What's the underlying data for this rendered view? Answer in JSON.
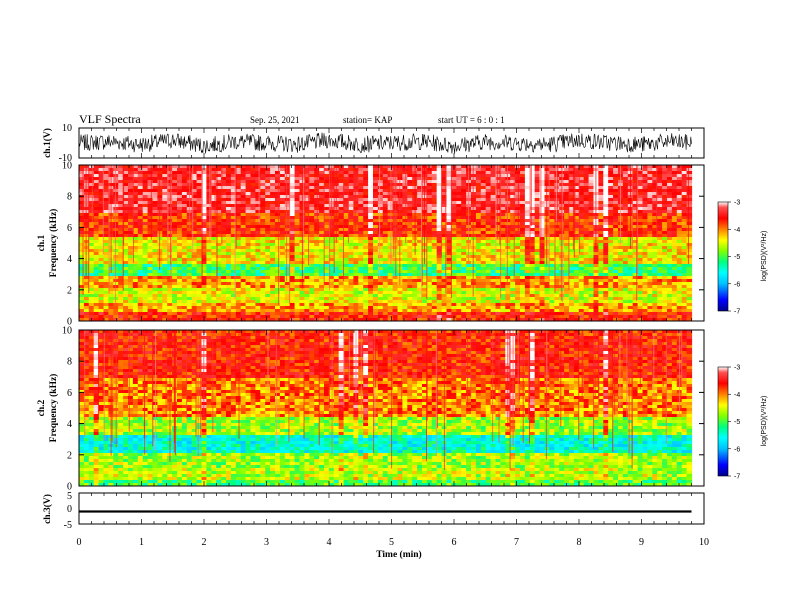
{
  "header": {
    "title": "VLF Spectra",
    "date": "Sep. 25, 2021",
    "station": "station= KAP",
    "start_ut": "start UT =  6 : 0 : 1"
  },
  "colors": {
    "colormap": [
      "#00008b",
      "#0000ff",
      "#00c0ff",
      "#00ffff",
      "#00ff80",
      "#80ff00",
      "#ffff00",
      "#ff8000",
      "#ff0000",
      "#ff3030",
      "#ffffff"
    ],
    "waveform": "#000000"
  },
  "chart_data": [
    {
      "type": "line",
      "panel": "ch.1 waveform",
      "ylabel": "ch.1(V)",
      "ylim": [
        -10,
        10
      ],
      "y_ticks": [
        "10",
        "-10"
      ],
      "x": [
        0,
        0.5,
        1,
        1.5,
        2,
        2.5,
        3,
        3.5,
        4,
        4.5,
        5,
        5.5,
        6,
        6.5,
        7,
        7.5,
        8,
        8.5,
        9,
        9.5,
        9.8
      ],
      "values": [
        0,
        1,
        -1,
        2,
        -2,
        1,
        0,
        -1,
        2,
        -1,
        0,
        1,
        -2,
        1,
        0,
        -1,
        2,
        0,
        -1,
        1,
        0
      ],
      "amplitude_range": [
        -7,
        7
      ]
    },
    {
      "type": "heatmap",
      "panel": "ch.1 spectrogram",
      "ylabel": "ch.1\nFrequency (kHz)",
      "ylim": [
        0,
        10
      ],
      "y_ticks": [
        "10",
        "8",
        "6",
        "4",
        "2",
        "0"
      ],
      "colorbar": {
        "label": "log(PSD)(V²/Hz)",
        "range": [
          -7,
          -3
        ],
        "ticks": [
          "-3",
          "-4",
          "-5",
          "-6",
          "-7"
        ]
      },
      "band_levels": [
        {
          "f_range": [
            0,
            0.5
          ],
          "log_psd": -3.8
        },
        {
          "f_range": [
            0.5,
            1.2
          ],
          "log_psd": -4.3
        },
        {
          "f_range": [
            1.2,
            2.2
          ],
          "log_psd": -4.7
        },
        {
          "f_range": [
            2.2,
            2.8
          ],
          "log_psd": -4.3
        },
        {
          "f_range": [
            2.8,
            3.6
          ],
          "log_psd": -5.3
        },
        {
          "f_range": [
            3.6,
            4.0
          ],
          "log_psd": -4.6
        },
        {
          "f_range": [
            4.0,
            5.3
          ],
          "log_psd": -4.6
        },
        {
          "f_range": [
            5.3,
            7.0
          ],
          "log_psd": -3.9
        },
        {
          "f_range": [
            7.0,
            10.0
          ],
          "log_psd": -3.5
        }
      ]
    },
    {
      "type": "heatmap",
      "panel": "ch.2 spectrogram",
      "ylabel": "ch.2\nFrequency (kHz)",
      "ylim": [
        0,
        10
      ],
      "y_ticks": [
        "10",
        "8",
        "6",
        "4",
        "2",
        "0"
      ],
      "colorbar": {
        "label": "log(PSD)(V²/Hz)",
        "range": [
          -7,
          -3
        ],
        "ticks": [
          "-3",
          "-4",
          "-5",
          "-6",
          "-7"
        ]
      },
      "band_levels": [
        {
          "f_range": [
            0,
            0.3
          ],
          "log_psd": -5.2
        },
        {
          "f_range": [
            0.3,
            1.2
          ],
          "log_psd": -4.8
        },
        {
          "f_range": [
            1.2,
            2.2
          ],
          "log_psd": -4.9
        },
        {
          "f_range": [
            2.2,
            3.3
          ],
          "log_psd": -5.7
        },
        {
          "f_range": [
            3.3,
            4.5
          ],
          "log_psd": -4.9
        },
        {
          "f_range": [
            4.5,
            7.0
          ],
          "log_psd": -4.2
        },
        {
          "f_range": [
            7.0,
            10.0
          ],
          "log_psd": -3.8
        }
      ]
    },
    {
      "type": "line",
      "panel": "ch.3 waveform",
      "ylabel": "ch.3(V)",
      "ylim": [
        -5,
        5
      ],
      "y_ticks": [
        "5",
        "0",
        "-5"
      ],
      "x": [
        0,
        9.8
      ],
      "values": [
        -1,
        -1
      ],
      "amplitude_range": [
        -1.3,
        -0.6
      ]
    }
  ],
  "x_axis": {
    "label": "Time (min)",
    "range": [
      0,
      10
    ],
    "ticks": [
      "0",
      "1",
      "2",
      "3",
      "4",
      "5",
      "6",
      "7",
      "8",
      "9",
      "10"
    ]
  }
}
